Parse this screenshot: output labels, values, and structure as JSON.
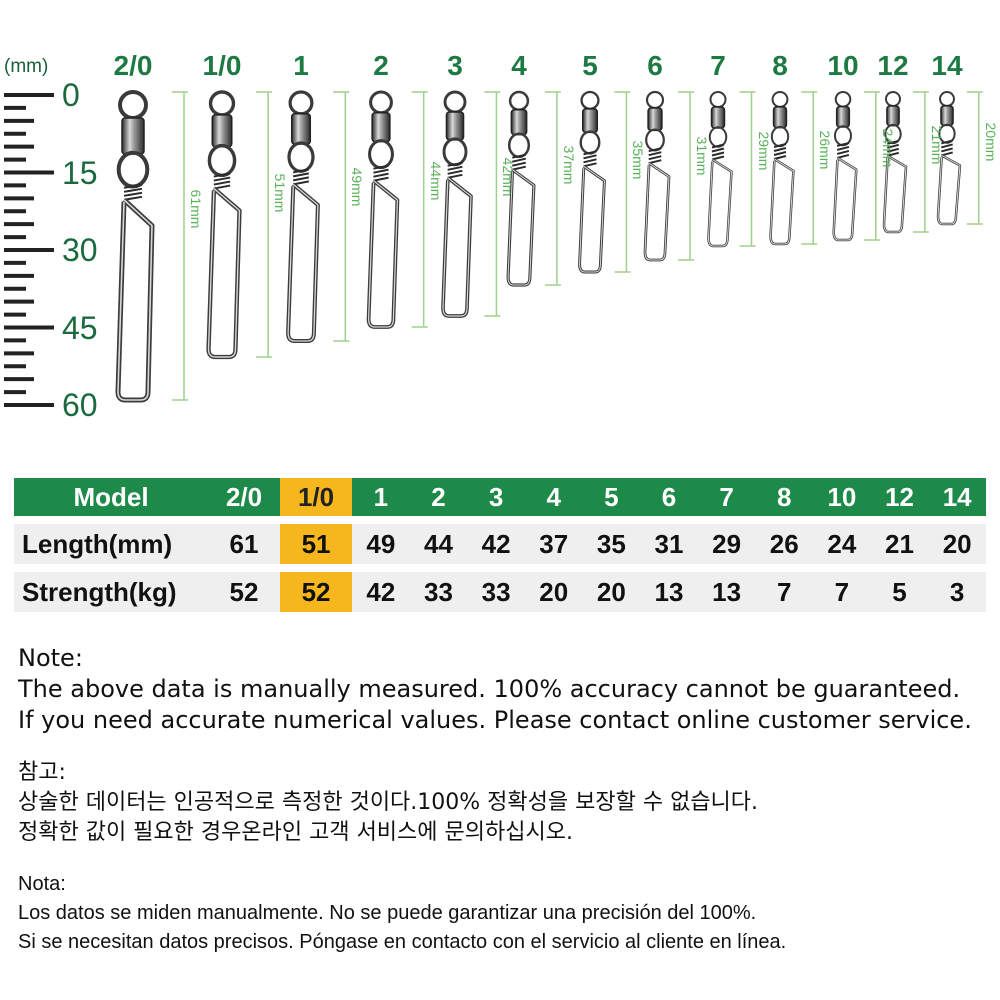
{
  "ruler": {
    "unit": "(mm)",
    "marks": [
      "0",
      "15",
      "30",
      "45",
      "60"
    ]
  },
  "sizes": [
    "2/0",
    "1/0",
    "1",
    "2",
    "3",
    "4",
    "5",
    "6",
    "7",
    "8",
    "10",
    "12",
    "14"
  ],
  "dimensions": [
    "61mm",
    "51mm",
    "49mm",
    "44mm",
    "42mm",
    "37mm",
    "35mm",
    "31mm",
    "29mm",
    "26mm",
    "24mm",
    "21mm",
    "20mm"
  ],
  "table": {
    "header_label": "Model",
    "models": [
      "2/0",
      "1/0",
      "1",
      "2",
      "3",
      "4",
      "5",
      "6",
      "7",
      "8",
      "10",
      "12",
      "14"
    ],
    "highlighted_model": "1/0",
    "rows": [
      {
        "label": "Length(mm)",
        "values": [
          "61",
          "51",
          "49",
          "44",
          "42",
          "37",
          "35",
          "31",
          "29",
          "26",
          "24",
          "21",
          "20"
        ]
      },
      {
        "label": "Strength(kg)",
        "values": [
          "52",
          "52",
          "42",
          "33",
          "33",
          "20",
          "20",
          "13",
          "13",
          "7",
          "7",
          "5",
          "3"
        ]
      }
    ]
  },
  "notes": {
    "en": {
      "title": "Note:",
      "line1": "The above data is manually measured. 100% accuracy cannot be guaranteed.",
      "line2": "If you need accurate numerical values. Please contact online customer service."
    },
    "ko": {
      "title": "참고:",
      "line1": "상술한 데이터는 인공적으로 측정한 것이다.100% 정확성을 보장할 수 없습니다.",
      "line2": "정확한 값이 필요한 경우온라인 고객 서비스에 문의하십시오."
    },
    "es": {
      "title": "Nota:",
      "line1": "Los datos se miden manualmente. No se puede garantizar una precisión del 100%.",
      "line2": "Si se necesitan datos precisos. Póngase en contacto con el servicio al cliente en línea."
    }
  },
  "colors": {
    "brand_green": "#1e8a4a",
    "highlight": "#f6b61e",
    "dimension_line": "#9fd08c",
    "row_gray": "#efefef"
  }
}
